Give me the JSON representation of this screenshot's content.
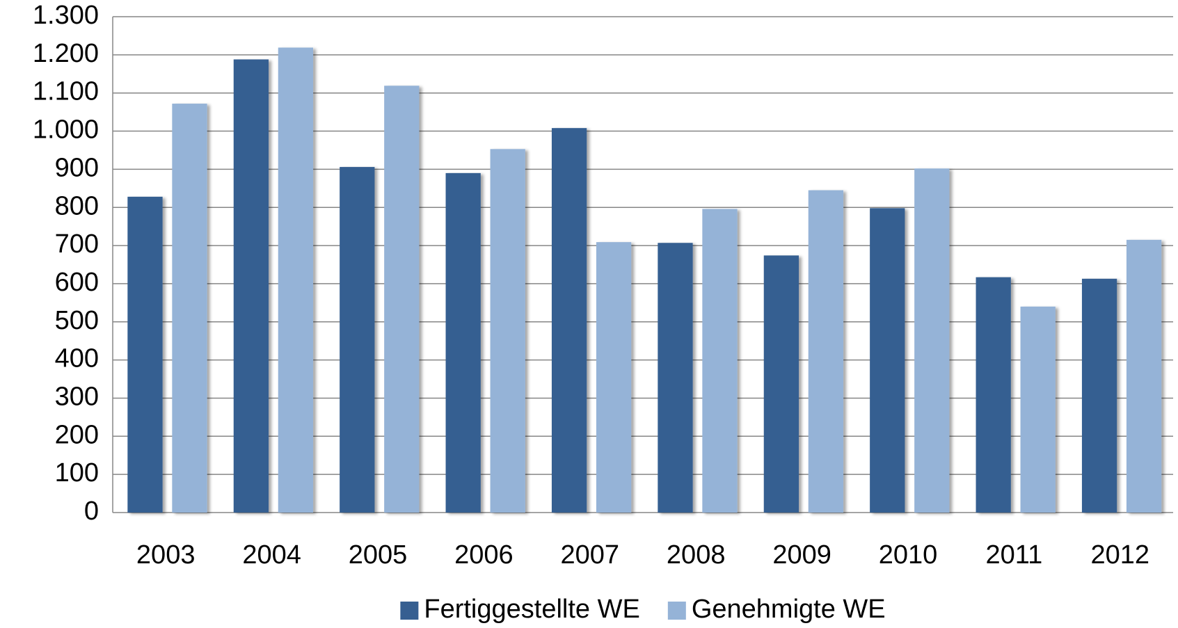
{
  "chart_data": {
    "type": "bar",
    "categories": [
      "2003",
      "2004",
      "2005",
      "2006",
      "2007",
      "2008",
      "2009",
      "2010",
      "2011",
      "2012"
    ],
    "series": [
      {
        "name": "Fertiggestellte WE",
        "color": "#365f91",
        "values": [
          828,
          1188,
          906,
          890,
          1008,
          707,
          674,
          798,
          617,
          613
        ]
      },
      {
        "name": "Genehmigte WE",
        "color": "#95b3d7",
        "values": [
          1072,
          1219,
          1119,
          953,
          709,
          796,
          845,
          902,
          540,
          715
        ]
      }
    ],
    "ylim": [
      0,
      1300
    ],
    "yticks": [
      0,
      100,
      200,
      300,
      400,
      500,
      600,
      700,
      800,
      900,
      {
        "value": 1000,
        "label": "1.000"
      },
      {
        "value": 1100,
        "label": "1.100"
      },
      {
        "value": 1200,
        "label": "1.200"
      },
      {
        "value": 1300,
        "label": "1.300"
      }
    ],
    "grid": true,
    "legend": "bottom"
  }
}
